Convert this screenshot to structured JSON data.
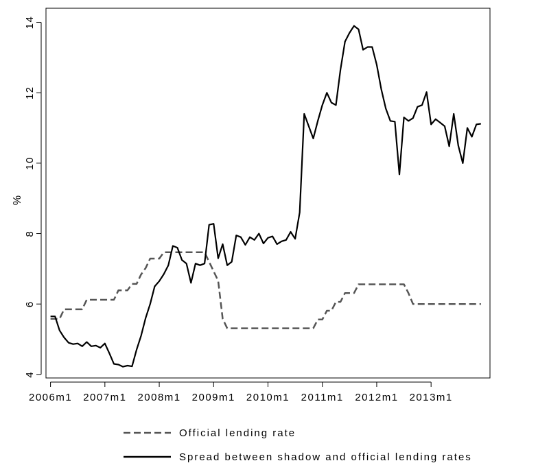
{
  "chart_data": {
    "type": "line",
    "xlabel": "",
    "ylabel": "%",
    "x_tick_labels": [
      "2006m1",
      "2007m1",
      "2008m1",
      "2009m1",
      "2010m1",
      "2011m1",
      "2012m1",
      "2013m1"
    ],
    "y_ticks": [
      4,
      6,
      8,
      10,
      12,
      14
    ],
    "y_tick_labels": [
      "4",
      "6",
      "8",
      "10",
      "12",
      "14"
    ],
    "x_range_months_since_2006m1": [
      -1,
      97
    ],
    "ylim": [
      3.9,
      14.4
    ],
    "legend_position": "bottom",
    "series": [
      {
        "name": "Official lending rate",
        "style": "dashed",
        "color": "#555555",
        "points": [
          [
            0,
            5.58
          ],
          [
            2,
            5.58
          ],
          [
            3,
            5.85
          ],
          [
            7,
            5.85
          ],
          [
            8,
            6.12
          ],
          [
            14,
            6.12
          ],
          [
            15,
            6.39
          ],
          [
            17,
            6.39
          ],
          [
            18,
            6.57
          ],
          [
            19,
            6.57
          ],
          [
            20,
            6.84
          ],
          [
            21,
            7.02
          ],
          [
            22,
            7.29
          ],
          [
            24,
            7.29
          ],
          [
            25,
            7.47
          ],
          [
            34,
            7.47
          ],
          [
            35,
            7.2
          ],
          [
            36,
            6.93
          ],
          [
            37,
            6.66
          ],
          [
            38,
            5.58
          ],
          [
            39,
            5.31
          ],
          [
            58,
            5.31
          ],
          [
            59,
            5.56
          ],
          [
            60,
            5.56
          ],
          [
            61,
            5.81
          ],
          [
            62,
            5.81
          ],
          [
            63,
            6.06
          ],
          [
            64,
            6.06
          ],
          [
            65,
            6.31
          ],
          [
            67,
            6.31
          ],
          [
            68,
            6.56
          ],
          [
            78,
            6.56
          ],
          [
            79,
            6.31
          ],
          [
            80,
            6.0
          ],
          [
            95,
            6.0
          ]
        ]
      },
      {
        "name": "Spread between shadow and official lending rates",
        "style": "solid",
        "color": "#000000",
        "points": [
          [
            0,
            5.65
          ],
          [
            1,
            5.65
          ],
          [
            2,
            5.25
          ],
          [
            3,
            5.05
          ],
          [
            4,
            4.9
          ],
          [
            5,
            4.86
          ],
          [
            6,
            4.88
          ],
          [
            7,
            4.8
          ],
          [
            8,
            4.92
          ],
          [
            9,
            4.8
          ],
          [
            10,
            4.82
          ],
          [
            11,
            4.76
          ],
          [
            12,
            4.88
          ],
          [
            13,
            4.6
          ],
          [
            14,
            4.3
          ],
          [
            15,
            4.28
          ],
          [
            16,
            4.22
          ],
          [
            17,
            4.25
          ],
          [
            18,
            4.23
          ],
          [
            19,
            4.7
          ],
          [
            20,
            5.1
          ],
          [
            21,
            5.6
          ],
          [
            22,
            6.0
          ],
          [
            23,
            6.5
          ],
          [
            24,
            6.65
          ],
          [
            25,
            6.85
          ],
          [
            26,
            7.1
          ],
          [
            27,
            7.65
          ],
          [
            28,
            7.6
          ],
          [
            29,
            7.25
          ],
          [
            30,
            7.15
          ],
          [
            31,
            6.6
          ],
          [
            32,
            7.15
          ],
          [
            33,
            7.1
          ],
          [
            34,
            7.15
          ],
          [
            35,
            8.25
          ],
          [
            36,
            8.28
          ],
          [
            37,
            7.3
          ],
          [
            38,
            7.7
          ],
          [
            39,
            7.1
          ],
          [
            40,
            7.2
          ],
          [
            41,
            7.95
          ],
          [
            42,
            7.9
          ],
          [
            43,
            7.68
          ],
          [
            44,
            7.9
          ],
          [
            45,
            7.82
          ],
          [
            46,
            8.0
          ],
          [
            47,
            7.72
          ],
          [
            48,
            7.88
          ],
          [
            49,
            7.92
          ],
          [
            50,
            7.7
          ],
          [
            51,
            7.78
          ],
          [
            52,
            7.82
          ],
          [
            53,
            8.05
          ],
          [
            54,
            7.85
          ],
          [
            55,
            8.6
          ],
          [
            56,
            11.4
          ],
          [
            57,
            11.05
          ],
          [
            58,
            10.7
          ],
          [
            59,
            11.2
          ],
          [
            60,
            11.65
          ],
          [
            61,
            12.0
          ],
          [
            62,
            11.72
          ],
          [
            63,
            11.65
          ],
          [
            64,
            12.65
          ],
          [
            65,
            13.45
          ],
          [
            66,
            13.7
          ],
          [
            67,
            13.9
          ],
          [
            68,
            13.8
          ],
          [
            69,
            13.22
          ],
          [
            70,
            13.3
          ],
          [
            71,
            13.3
          ],
          [
            72,
            12.8
          ],
          [
            73,
            12.1
          ],
          [
            74,
            11.55
          ],
          [
            75,
            11.2
          ],
          [
            76,
            11.18
          ],
          [
            77,
            9.68
          ],
          [
            78,
            11.3
          ],
          [
            79,
            11.2
          ],
          [
            80,
            11.28
          ],
          [
            81,
            11.6
          ],
          [
            82,
            11.65
          ],
          [
            83,
            12.02
          ],
          [
            84,
            11.1
          ],
          [
            85,
            11.25
          ],
          [
            86,
            11.15
          ],
          [
            87,
            11.05
          ],
          [
            88,
            10.48
          ],
          [
            89,
            11.4
          ],
          [
            90,
            10.5
          ],
          [
            91,
            10.0
          ],
          [
            92,
            11.0
          ],
          [
            93,
            10.75
          ],
          [
            94,
            11.1
          ],
          [
            95,
            11.12
          ]
        ]
      }
    ]
  }
}
